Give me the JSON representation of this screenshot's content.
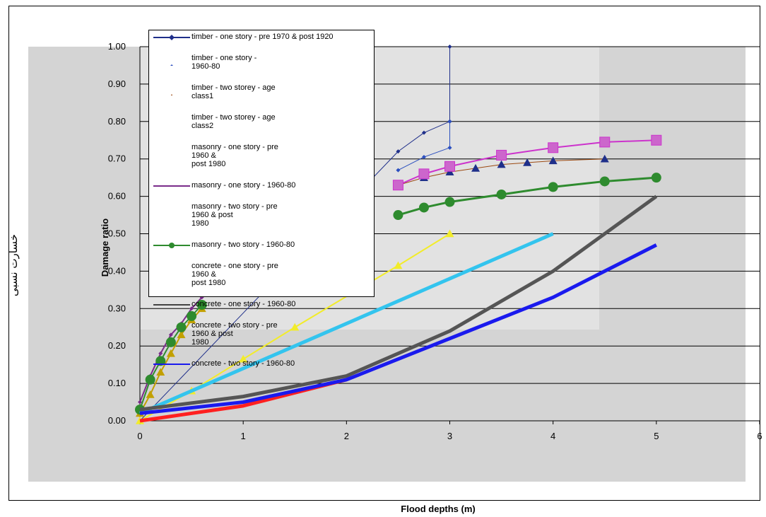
{
  "side_label": "خسارت نسبی",
  "chart_data": {
    "type": "line",
    "xlabel": "Flood depths (m)",
    "ylabel": "Damage ratio",
    "xlim": [
      0,
      6
    ],
    "ylim": [
      0,
      1
    ],
    "x_ticks": [
      "0",
      "1",
      "2",
      "3",
      "4",
      "5",
      "6"
    ],
    "y_ticks": [
      "0.00",
      "0.10",
      "0.20",
      "0.30",
      "0.40",
      "0.50",
      "0.60",
      "0.70",
      "0.80",
      "0.90",
      "1.00"
    ],
    "grid": true,
    "legend_position": "top-left, inside plot",
    "legend": [
      "timber - one story - pre 1970 & post 1920",
      "timber - one story - 1960-80",
      "timber - two storey - age class1",
      "timber - two storey - age class2",
      "masonry - one story - pre 1960 & post 1980",
      "masonry - one story - 1960-80",
      "masonry - two story - pre 1960 & post 1980",
      "masonry - two story - 1960-80",
      "concrete - one story - pre 1960 & post 1980",
      "concrete - one story - 1960-80",
      "concrete - two story - pre 1960 & post 1980",
      "concrete - two story - 1960-80"
    ],
    "legend_lines": [
      [
        "timber - one story - pre 1970 & post 1920"
      ],
      [
        "timber - one story -",
        "1960-80"
      ],
      [
        "timber - two storey - age",
        "class1"
      ],
      [
        "timber - two storey - age",
        "class2"
      ],
      [
        "masonry - one story - pre",
        "1960 &",
        "post 1980"
      ],
      [
        "masonry - one story - 1960-80"
      ],
      [
        "masonry - two story - pre",
        "1960 & post",
        "1980"
      ],
      [
        "masonry - two story - 1960-80"
      ],
      [
        "concrete - one story - pre",
        "1960 &",
        "post 1980"
      ],
      [
        "concrete - one story - 1960-80"
      ],
      [
        "concrete - two story - pre",
        "1960 & post",
        "1980"
      ],
      [
        "concrete - two story - 1960-80"
      ]
    ],
    "series": [
      {
        "color": "#1f2f8a",
        "marker": "diamond",
        "width": 1,
        "x": [
          0,
          2.5,
          2.75,
          3,
          3,
          3
        ],
        "y": [
          0.0,
          0.72,
          0.77,
          0.8,
          0.8,
          1.0
        ]
      },
      {
        "color": "#2b4fbf",
        "marker": "diamond",
        "width": 1,
        "x": [
          2.5,
          2.75,
          3,
          3
        ],
        "y": [
          0.67,
          0.705,
          0.73,
          0.8
        ]
      },
      {
        "color": "#9c4a12",
        "marker": "triangle",
        "width": 1,
        "x": [
          2.5,
          2.75,
          3,
          3.25,
          3.5,
          3.75,
          4,
          4.5
        ],
        "y": [
          0.63,
          0.65,
          0.665,
          0.675,
          0.685,
          0.69,
          0.695,
          0.7
        ]
      },
      {
        "color": "#cc33cc",
        "marker": "square",
        "width": 2,
        "x": [
          2.5,
          2.75,
          3,
          3.5,
          4,
          4.5,
          5
        ],
        "y": [
          0.63,
          0.66,
          0.68,
          0.71,
          0.73,
          0.745,
          0.75
        ]
      },
      {
        "color": "#2e8b2e",
        "marker": "circle",
        "width": 3,
        "x": [
          2.5,
          2.75,
          3,
          3.5,
          4,
          4.5,
          5
        ],
        "y": [
          0.55,
          0.57,
          0.585,
          0.605,
          0.625,
          0.64,
          0.65
        ]
      },
      {
        "color": "#7a2c8a",
        "marker": "diamond",
        "width": 2,
        "x": [
          0,
          0.1,
          0.2,
          0.3,
          0.4,
          0.5,
          0.6
        ],
        "y": [
          0.05,
          0.12,
          0.18,
          0.23,
          0.26,
          0.3,
          0.33
        ]
      },
      {
        "color": "#c2a000",
        "marker": "triangle",
        "width": 2,
        "x": [
          0,
          0.1,
          0.2,
          0.3,
          0.4,
          0.5,
          0.6
        ],
        "y": [
          0.02,
          0.07,
          0.13,
          0.18,
          0.23,
          0.27,
          0.3
        ]
      },
      {
        "color": "#2e8b2e",
        "marker": "circle",
        "width": 2,
        "x": [
          0,
          0.1,
          0.2,
          0.3,
          0.4,
          0.5,
          0.6
        ],
        "y": [
          0.03,
          0.11,
          0.16,
          0.21,
          0.25,
          0.28,
          0.31
        ]
      },
      {
        "color": "#f2ec2a",
        "marker": "triangle",
        "width": 2,
        "x": [
          0,
          0.5,
          1,
          1.5,
          2.5,
          3
        ],
        "y": [
          0.0,
          0.08,
          0.165,
          0.25,
          0.415,
          0.5
        ]
      },
      {
        "color": "#33c4ee",
        "marker": "none",
        "width": 5,
        "x": [
          0,
          4
        ],
        "y": [
          0.02,
          0.5
        ]
      },
      {
        "color": "#555555",
        "marker": "none",
        "width": 5,
        "x": [
          0,
          1,
          2,
          3,
          4,
          4.5,
          5
        ],
        "y": [
          0.03,
          0.065,
          0.12,
          0.24,
          0.4,
          0.5,
          0.6
        ]
      },
      {
        "color": "#ff2020",
        "marker": "none",
        "width": 5,
        "x": [
          0,
          1,
          2
        ],
        "y": [
          0.0,
          0.04,
          0.11
        ]
      },
      {
        "color": "#1a1aee",
        "marker": "none",
        "width": 5,
        "x": [
          0,
          1,
          2,
          3,
          4,
          4.5,
          5
        ],
        "y": [
          0.02,
          0.05,
          0.11,
          0.22,
          0.33,
          0.4,
          0.47
        ]
      }
    ]
  }
}
